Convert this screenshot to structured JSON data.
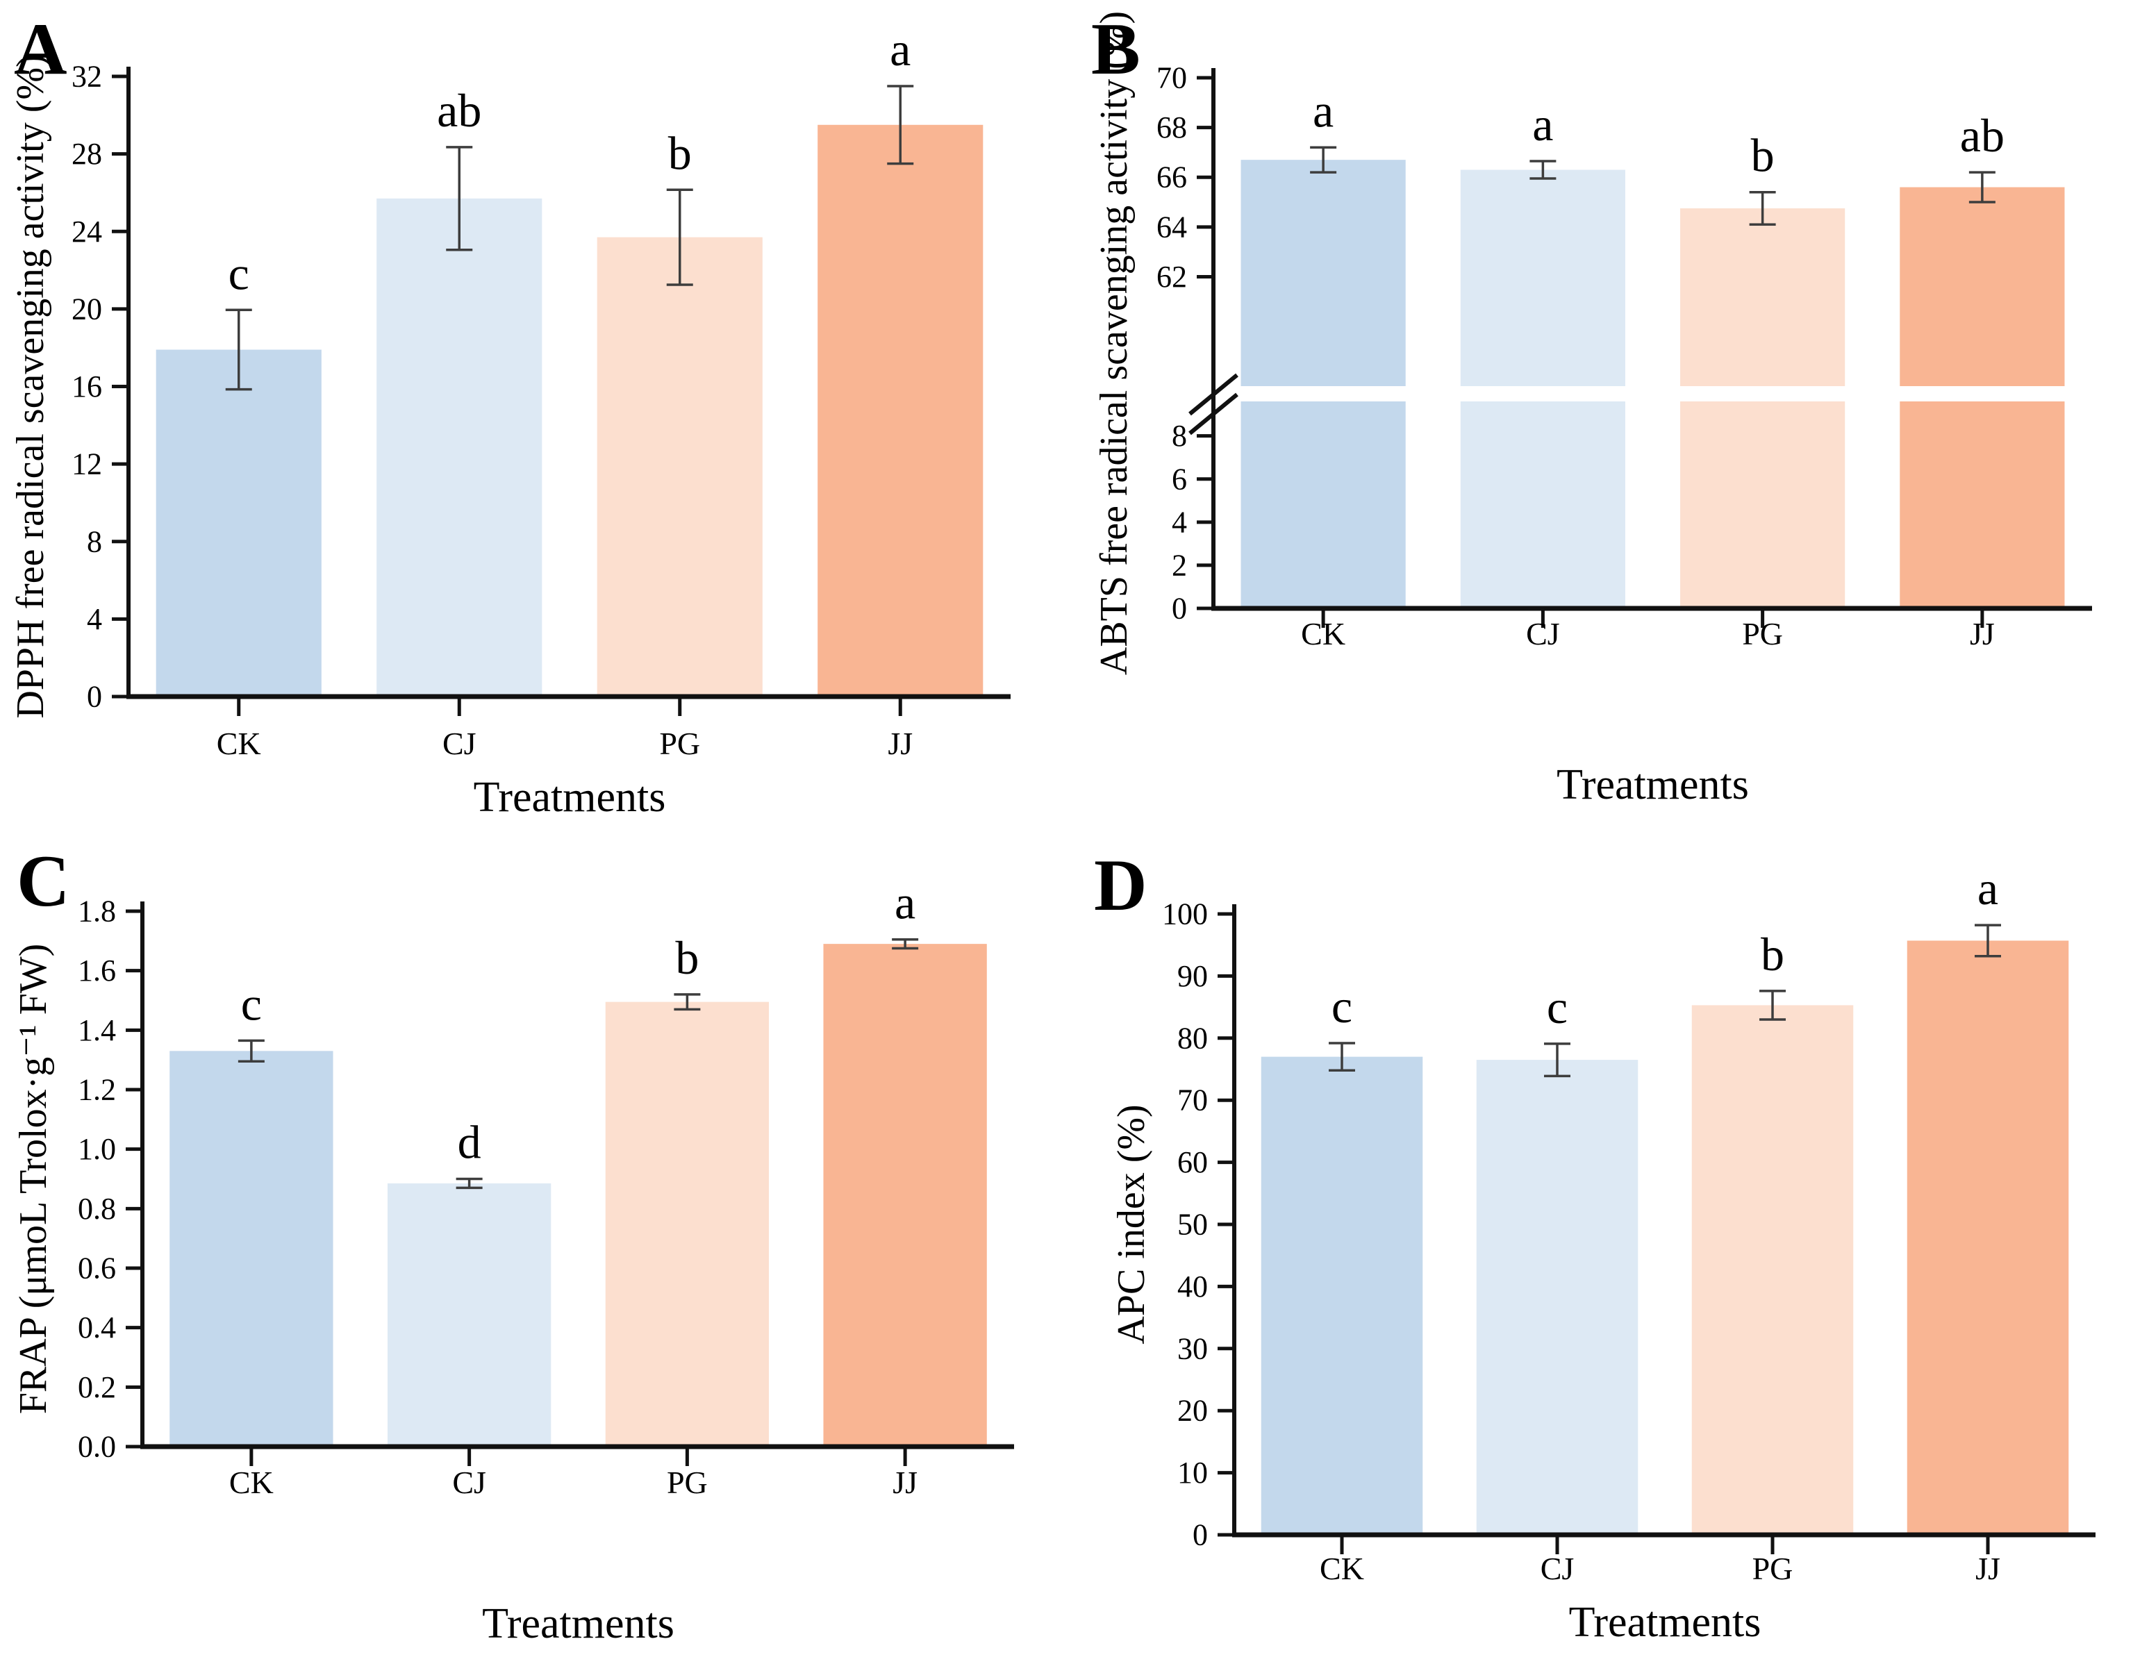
{
  "figure_title": "",
  "x_axis_title": "Treatments",
  "categories": [
    "CK",
    "CJ",
    "PG",
    "JJ"
  ],
  "bar_colors": [
    "#c3d8ec",
    "#dde9f4",
    "#fcdfcf",
    "#f9b593"
  ],
  "error_bar_color": "#3d3d3d",
  "axis_color": "#111111",
  "chart_data": [
    {
      "panel": "A",
      "type": "bar",
      "ylabel": "DPPH free radical scavenging activity (%)",
      "xlabel": "Treatments",
      "categories": [
        "CK",
        "CJ",
        "PG",
        "JJ"
      ],
      "values": [
        17.9,
        25.7,
        23.7,
        29.5
      ],
      "errors": [
        2.05,
        2.65,
        2.45,
        2.0
      ],
      "sig_letters": [
        "c",
        "ab",
        "b",
        "a"
      ],
      "ylim": [
        0,
        32
      ],
      "yticks": [
        0,
        4,
        8,
        12,
        16,
        20,
        24,
        28,
        32
      ],
      "ytick_labels": [
        "0",
        "4",
        "8",
        "12",
        "16",
        "20",
        "24",
        "28",
        "32"
      ],
      "grid": false,
      "legend": false
    },
    {
      "panel": "B",
      "type": "bar",
      "ylabel": "ABTS free radical scavenging activity (%)",
      "xlabel": "Treatments",
      "categories": [
        "CK",
        "CJ",
        "PG",
        "JJ"
      ],
      "values": [
        66.7,
        66.3,
        64.75,
        65.6
      ],
      "errors": [
        0.5,
        0.35,
        0.65,
        0.6
      ],
      "sig_letters": [
        "a",
        "a",
        "b",
        "ab"
      ],
      "broken_axis": {
        "lower_max": 9.6,
        "upper_min": 57.6,
        "upper_max": 70,
        "lower_ticks": [
          0,
          2,
          4,
          6,
          8
        ],
        "lower_tick_labels": [
          "0",
          "2",
          "4",
          "6",
          "8"
        ],
        "upper_ticks": [
          62,
          64,
          66,
          68,
          70
        ],
        "upper_tick_labels": [
          "62",
          "64",
          "66",
          "68",
          "70"
        ]
      },
      "grid": false,
      "legend": false
    },
    {
      "panel": "C",
      "type": "bar",
      "ylabel": "FRAP (μmoL Trolox·g⁻¹ FW)",
      "xlabel": "Treatments",
      "categories": [
        "CK",
        "CJ",
        "PG",
        "JJ"
      ],
      "values": [
        1.33,
        0.885,
        1.495,
        1.69
      ],
      "errors": [
        0.035,
        0.015,
        0.025,
        0.015
      ],
      "sig_letters": [
        "c",
        "d",
        "b",
        "a"
      ],
      "ylim": [
        0,
        1.8
      ],
      "yticks": [
        0,
        0.2,
        0.4,
        0.6,
        0.8,
        1.0,
        1.2,
        1.4,
        1.6,
        1.8
      ],
      "ytick_labels": [
        "0.0",
        "0.2",
        "0.4",
        "0.6",
        "0.8",
        "1.0",
        "1.2",
        "1.4",
        "1.6",
        "1.8"
      ],
      "grid": false,
      "legend": false
    },
    {
      "panel": "D",
      "type": "bar",
      "ylabel": "APC index (%)",
      "xlabel": "Treatments",
      "categories": [
        "CK",
        "CJ",
        "PG",
        "JJ"
      ],
      "values": [
        77,
        76.5,
        85.3,
        95.7
      ],
      "errors": [
        2.2,
        2.6,
        2.3,
        2.5
      ],
      "sig_letters": [
        "c",
        "c",
        "b",
        "a"
      ],
      "ylim": [
        0,
        100
      ],
      "yticks": [
        0,
        10,
        20,
        30,
        40,
        50,
        60,
        70,
        80,
        90,
        100
      ],
      "ytick_labels": [
        "0",
        "10",
        "20",
        "30",
        "40",
        "50",
        "60",
        "70",
        "80",
        "90",
        "100"
      ],
      "grid": false,
      "legend": false
    }
  ]
}
